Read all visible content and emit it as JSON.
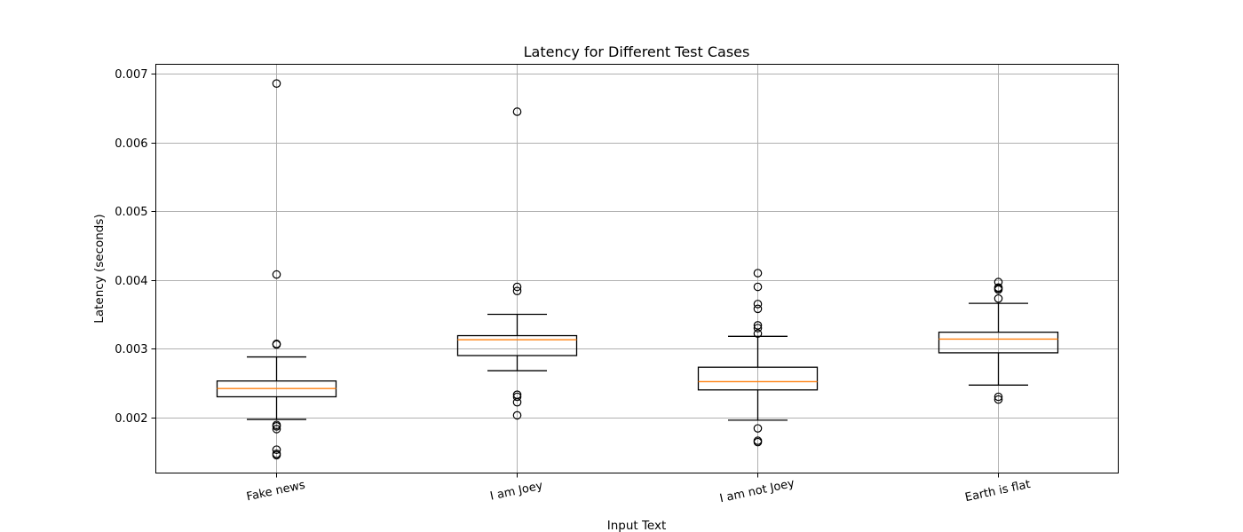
{
  "chart_data": {
    "type": "box",
    "title": "Latency for Different Test Cases",
    "xlabel": "Input Text",
    "ylabel": "Latency (seconds)",
    "categories": [
      "Fake news",
      "I am Joey",
      "I am not Joey",
      "Earth is flat"
    ],
    "ylim": [
      0.00119,
      0.00714
    ],
    "yticks": [
      0.002,
      0.003,
      0.004,
      0.005,
      0.006,
      0.007
    ],
    "ytick_labels": [
      "0.002",
      "0.003",
      "0.004",
      "0.005",
      "0.006",
      "0.007"
    ],
    "grid": true,
    "boxes": [
      {
        "label": "Fake news",
        "whisker_low": 0.00197,
        "q1": 0.0023,
        "median": 0.00242,
        "q3": 0.00253,
        "whisker_high": 0.00288,
        "outliers": [
          0.00686,
          0.00408,
          0.00307,
          0.00306,
          0.00189,
          0.00187,
          0.00183,
          0.00153,
          0.00147,
          0.00145
        ]
      },
      {
        "label": "I am Joey",
        "whisker_low": 0.00268,
        "q1": 0.0029,
        "median": 0.00313,
        "q3": 0.00319,
        "whisker_high": 0.0035,
        "outliers": [
          0.00645,
          0.0039,
          0.00384,
          0.00233,
          0.0023,
          0.00222,
          0.00203
        ]
      },
      {
        "label": "I am not Joey",
        "whisker_low": 0.00196,
        "q1": 0.0024,
        "median": 0.00252,
        "q3": 0.00273,
        "whisker_high": 0.00318,
        "outliers": [
          0.0041,
          0.0039,
          0.00365,
          0.00358,
          0.00334,
          0.0033,
          0.00322,
          0.00184,
          0.00166,
          0.00164
        ]
      },
      {
        "label": "Earth is flat",
        "whisker_low": 0.00247,
        "q1": 0.00294,
        "median": 0.00314,
        "q3": 0.00324,
        "whisker_high": 0.00366,
        "outliers": [
          0.00397,
          0.00389,
          0.00388,
          0.00386,
          0.00373,
          0.0023,
          0.00226
        ]
      }
    ],
    "colors": {
      "box": "#000000",
      "median": "#ff7f0e",
      "grid": "#b0b0b0",
      "outlier": "#000000"
    }
  }
}
